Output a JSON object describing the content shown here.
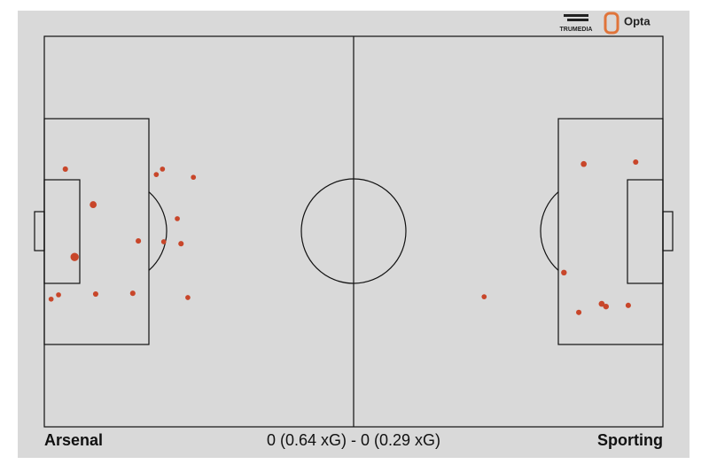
{
  "chart_data": {
    "type": "scatter",
    "subtitle": "0 (0.64 xG) - 0 (0.29 xG)",
    "logos": [
      "TRUMEDIA",
      "Opta"
    ],
    "xlim": [
      0,
      100
    ],
    "ylim": [
      0,
      100
    ],
    "y_inverted": true,
    "series": [
      {
        "name": "Arsenal",
        "color": "#c8462a",
        "x": [
          3.4,
          7.9,
          4.9,
          1.1,
          2.3,
          8.3,
          14.3,
          15.2,
          18.1,
          19.1,
          24.1,
          21.5,
          19.3,
          22.1,
          23.2
        ],
        "values": [
          34.0,
          43.1,
          56.5,
          67.3,
          66.2,
          66.0,
          65.8,
          52.4,
          35.4,
          34.0,
          36.1,
          46.7,
          52.6,
          53.1,
          66.9
        ],
        "sizes": [
          0.03,
          0.1,
          0.2,
          0.02,
          0.02,
          0.03,
          0.03,
          0.03,
          0.02,
          0.02,
          0.02,
          0.02,
          0.02,
          0.03,
          0.02
        ]
      },
      {
        "name": "Sporting",
        "color": "#c8462a",
        "x": [
          87.2,
          95.6,
          84.0,
          71.1,
          86.4,
          90.1,
          90.8,
          94.4
        ],
        "values": [
          32.7,
          32.2,
          60.5,
          66.7,
          70.7,
          68.5,
          69.2,
          68.9
        ],
        "sizes": [
          0.05,
          0.03,
          0.04,
          0.02,
          0.03,
          0.05,
          0.04,
          0.03
        ]
      }
    ]
  }
}
